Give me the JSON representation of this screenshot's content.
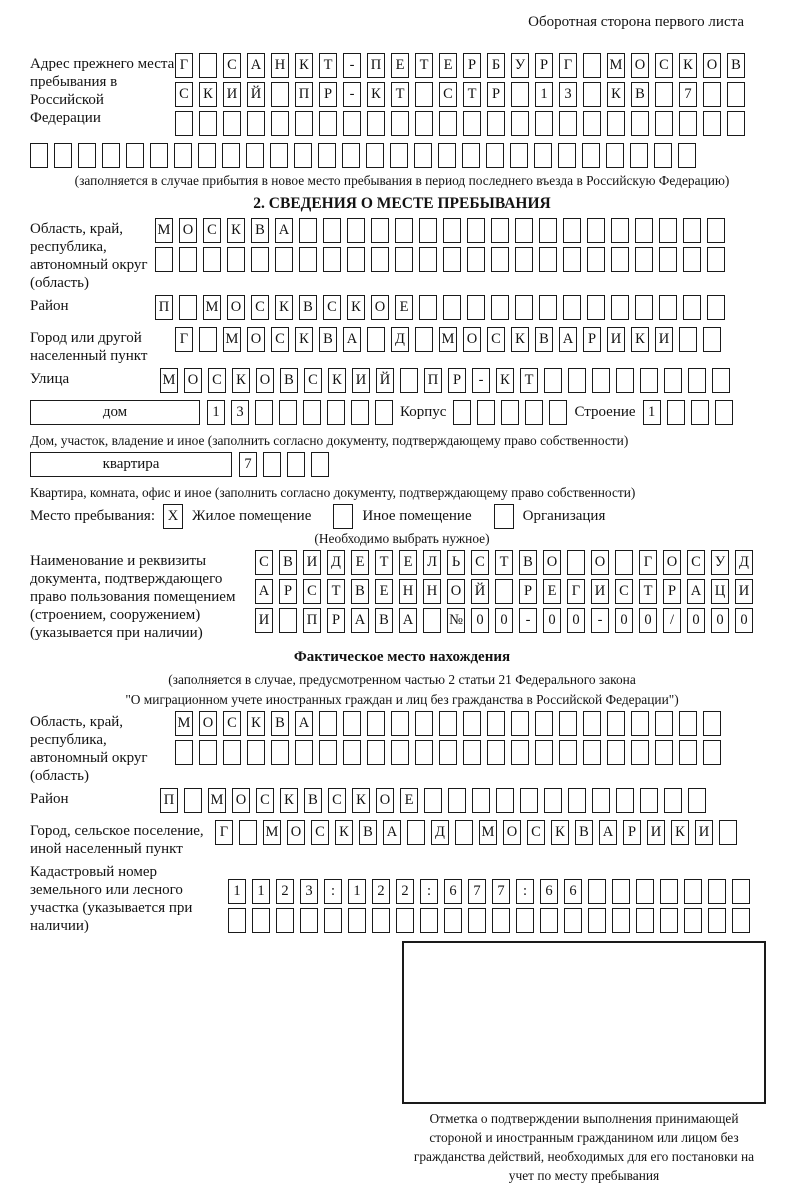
{
  "page": {
    "title_right": "Оборотная сторона первого листа"
  },
  "prev_address": {
    "label": "Адрес прежнего места пребывания в Российской Федерации",
    "row1": {
      "text": "Г САНКТ-ПЕТЕРБУРГ МОСКОВ",
      "count": 24
    },
    "row2": {
      "text": "СКИЙ ПР-КТ СТР 13 КВ 7",
      "count": 24
    },
    "row3": {
      "text": "",
      "count": 24
    },
    "row4": {
      "text": "",
      "count": 28
    },
    "note": "(заполняется в случае прибытия в новое место пребывания в период последнего въезда в Российскую Федерацию)"
  },
  "section2": {
    "title": "2. СВЕДЕНИЯ О МЕСТЕ ПРЕБЫВАНИЯ",
    "region": {
      "label": "Область, край, республика, автономный округ (область)",
      "row1": {
        "text": "МОСКВА",
        "count": 24
      },
      "row2": {
        "text": "",
        "count": 24
      }
    },
    "district": {
      "label": "Район",
      "row": {
        "text": "П МОСКВСКОЕ",
        "count": 24
      }
    },
    "city": {
      "label": "Город или другой населенный пункт",
      "row": {
        "text": "Г МОСКВА Д МОСКВАРИКИ",
        "count": 23
      }
    },
    "street": {
      "label": "Улица",
      "row": {
        "text": "МОСКОВСКИЙ ПР-КТ",
        "count": 24
      }
    },
    "house_row": {
      "house_label": "дом",
      "house": {
        "text": "13",
        "count": 8
      },
      "korpus_label": "Корпус",
      "korpus": {
        "text": "",
        "count": 5
      },
      "stroenie_label": "Строение",
      "stroenie": {
        "text": "1",
        "count": 4
      }
    },
    "house_note": "Дом, участок, владение и иное (заполнить согласно документу, подтверждающему право собственности)",
    "apartment_row": {
      "label": "квартира",
      "cells": {
        "text": "7",
        "count": 4
      }
    },
    "apartment_note": "Квартира, комната, офис и иное (заполнить согласно документу, подтверждающему право собственности)",
    "stay": {
      "label": "Место пребывания:",
      "options": [
        {
          "mark": "X",
          "label": "Жилое помещение"
        },
        {
          "mark": "",
          "label": "Иное помещение"
        },
        {
          "mark": "",
          "label": "Организация"
        }
      ],
      "note": "(Необходимо выбрать нужное)"
    },
    "document": {
      "label": "Наименование и реквизиты документа, подтверждающего право пользования помещением (строением, сооружением) (указывается при наличии)",
      "row1": {
        "text": "СВИДЕТЕЛЬСТВО О ГОСУД",
        "count": 21
      },
      "row2": {
        "text": "АРСТВЕННОЙ РЕГИСТРАЦИ",
        "count": 21
      },
      "row3": {
        "text": "И ПРАВА №00-00-00/000",
        "count": 21
      }
    }
  },
  "actual": {
    "title": "Фактическое место нахождения",
    "note_line1": "(заполняется в случае, предусмотренном частью 2 статьи 21 Федерального закона",
    "note_line2": "\"О миграционном учете иностранных граждан и лиц без гражданства в Российской Федерации\")",
    "region": {
      "label": "Область, край, республика, автономный округ (область)",
      "row1": {
        "text": "МОСКВА",
        "count": 23
      },
      "row2": {
        "text": "",
        "count": 23
      }
    },
    "district": {
      "label": "Район",
      "row": {
        "text": "П МОСКВСКОЕ",
        "count": 23
      }
    },
    "city": {
      "label": "Город, сельское поселение, иной населенный пункт",
      "row": {
        "text": "Г МОСКВА Д МОСКВАРИКИ",
        "count": 22
      }
    },
    "cadastral": {
      "label": "Кадастровый номер земельного или лесного участка (указывается при наличии)",
      "row1": {
        "text": "1123:122:677:66",
        "count": 22
      },
      "row2": {
        "text": "",
        "count": 22
      }
    }
  },
  "stamp": {
    "caption": "Отметка о подтверждении выполнения принимающей стороной и иностранным гражданином или лицом без гражданства действий, необходимых для его постановки на учет по месту пребывания"
  }
}
